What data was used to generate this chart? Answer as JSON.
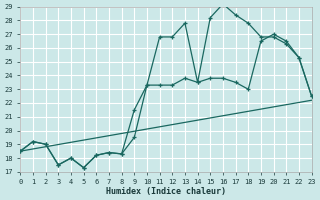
{
  "xlabel": "Humidex (Indice chaleur)",
  "background_color": "#cce8e8",
  "grid_color": "#b8d8d8",
  "line_color": "#1a6860",
  "xlim": [
    0,
    23
  ],
  "ylim": [
    17,
    29
  ],
  "yticks": [
    17,
    18,
    19,
    20,
    21,
    22,
    23,
    24,
    25,
    26,
    27,
    28,
    29
  ],
  "xticks": [
    0,
    1,
    2,
    3,
    4,
    5,
    6,
    7,
    8,
    9,
    10,
    11,
    12,
    13,
    14,
    15,
    16,
    17,
    18,
    19,
    20,
    21,
    22,
    23
  ],
  "curve1_x": [
    0,
    1,
    2,
    3,
    4,
    5,
    6,
    7,
    8,
    9,
    10,
    11,
    12,
    13,
    14,
    15,
    16,
    17,
    18,
    19,
    20,
    21,
    22,
    23
  ],
  "curve1_y": [
    18.5,
    19.2,
    19.0,
    17.5,
    18.0,
    17.3,
    18.2,
    18.4,
    18.3,
    19.5,
    23.3,
    26.8,
    26.8,
    27.8,
    23.5,
    28.2,
    29.2,
    28.4,
    27.8,
    26.8,
    26.8,
    26.3,
    25.3,
    22.5
  ],
  "curve2_x": [
    0,
    1,
    2,
    3,
    4,
    5,
    6,
    7,
    8,
    9,
    10,
    11,
    12,
    13,
    14,
    15,
    16,
    17,
    18,
    19,
    20,
    21,
    22,
    23
  ],
  "curve2_y": [
    18.5,
    19.2,
    19.0,
    17.5,
    18.0,
    17.3,
    18.2,
    18.4,
    18.3,
    21.5,
    23.3,
    23.3,
    23.3,
    23.8,
    23.5,
    23.8,
    23.8,
    23.5,
    23.0,
    26.5,
    27.0,
    26.5,
    25.3,
    22.5
  ],
  "curve3_x": [
    0,
    23
  ],
  "curve3_y": [
    18.5,
    22.2
  ]
}
